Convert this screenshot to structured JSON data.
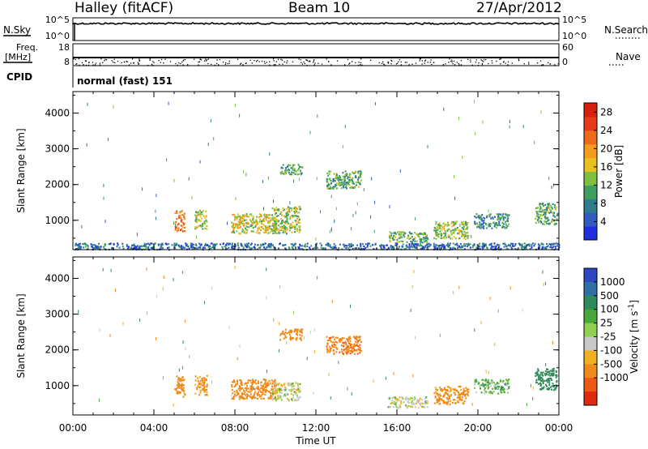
{
  "header": {
    "station": "Halley (fitACF)",
    "beam": "Beam 10",
    "date": "27/Apr/2012"
  },
  "panels": {
    "noise": {
      "left_label": "N.Sky",
      "right_label": "N.Search",
      "left_ticks": [
        "10^5",
        "10^0"
      ],
      "right_ticks": [
        "10^5",
        "10^0"
      ]
    },
    "freq": {
      "label_top": "Freq.",
      "label_bottom": "[MHz]",
      "right_label": "Nave",
      "left_ticks": [
        "18",
        "8"
      ],
      "right_ticks": [
        "60",
        "0"
      ]
    },
    "cpid": {
      "label": "CPID",
      "text": "normal (fast) 151"
    }
  },
  "chart_data": [
    {
      "type": "heatmap",
      "title": "",
      "xlabel": "",
      "ylabel": "Slant Range [km]",
      "xlim": [
        0,
        24
      ],
      "ylim": [
        180,
        4600
      ],
      "yticks": [
        1000,
        2000,
        3000,
        4000
      ],
      "colorbar": {
        "label": "Power [dB]",
        "ticks": [
          4,
          8,
          12,
          16,
          20,
          24,
          28
        ],
        "range": [
          0,
          30
        ],
        "colors": [
          "#1f2ee0",
          "#2f5cc0",
          "#2f7d8c",
          "#3f9f5f",
          "#7fbf3f",
          "#e8c020",
          "#f29b1f",
          "#ee6a1b",
          "#e83a18",
          "#d8200f"
        ]
      },
      "patches": [
        {
          "t": [
            5.0,
            5.5
          ],
          "r": [
            700,
            1300
          ],
          "level": 22
        },
        {
          "t": [
            6.0,
            6.6
          ],
          "r": [
            750,
            1300
          ],
          "level": 14
        },
        {
          "t": [
            7.8,
            10.0
          ],
          "r": [
            650,
            1200
          ],
          "level": 16
        },
        {
          "t": [
            9.8,
            11.2
          ],
          "r": [
            650,
            1400
          ],
          "level": 14
        },
        {
          "t": [
            10.2,
            11.3
          ],
          "r": [
            2300,
            2600
          ],
          "level": 10
        },
        {
          "t": [
            12.5,
            14.2
          ],
          "r": [
            1900,
            2400
          ],
          "level": 11
        },
        {
          "t": [
            15.5,
            17.5
          ],
          "r": [
            400,
            700
          ],
          "level": 12
        },
        {
          "t": [
            17.8,
            19.5
          ],
          "r": [
            500,
            1000
          ],
          "level": 14
        },
        {
          "t": [
            19.8,
            21.5
          ],
          "r": [
            800,
            1200
          ],
          "level": 9
        },
        {
          "t": [
            22.8,
            23.9
          ],
          "r": [
            900,
            1500
          ],
          "level": 11
        },
        {
          "t": [
            0.0,
            24.0
          ],
          "r": [
            200,
            380
          ],
          "level": 6
        }
      ]
    },
    {
      "type": "heatmap",
      "title": "",
      "xlabel": "Time UT",
      "ylabel": "Slant Range [km]",
      "xlim": [
        0,
        24
      ],
      "ylim": [
        180,
        4600
      ],
      "xticks": [
        "00:00",
        "04:00",
        "08:00",
        "12:00",
        "16:00",
        "20:00",
        "00:00"
      ],
      "yticks": [
        1000,
        2000,
        3000,
        4000
      ],
      "colorbar": {
        "label": "Velocity [m s-1]",
        "ticks": [
          1000,
          500,
          100,
          25,
          -25,
          -100,
          -500,
          -1000
        ],
        "colors": [
          "#2e48c4",
          "#2f6fa8",
          "#2e8a5a",
          "#49a83a",
          "#8fd14f",
          "#c8c8c8",
          "#f0b020",
          "#f08a1a",
          "#ee5a14",
          "#e02a10"
        ]
      },
      "patches": [
        {
          "t": [
            5.0,
            5.5
          ],
          "r": [
            700,
            1300
          ],
          "level": -200
        },
        {
          "t": [
            6.0,
            6.6
          ],
          "r": [
            750,
            1300
          ],
          "level": -150
        },
        {
          "t": [
            7.8,
            10.0
          ],
          "r": [
            650,
            1200
          ],
          "level": -200
        },
        {
          "t": [
            9.8,
            11.2
          ],
          "r": [
            600,
            1100
          ],
          "level": 0
        },
        {
          "t": [
            10.2,
            11.3
          ],
          "r": [
            2300,
            2600
          ],
          "level": -300
        },
        {
          "t": [
            12.5,
            14.2
          ],
          "r": [
            1900,
            2400
          ],
          "level": -400
        },
        {
          "t": [
            15.5,
            17.5
          ],
          "r": [
            400,
            700
          ],
          "level": 0
        },
        {
          "t": [
            17.8,
            19.5
          ],
          "r": [
            500,
            1000
          ],
          "level": -150
        },
        {
          "t": [
            19.8,
            21.5
          ],
          "r": [
            800,
            1200
          ],
          "level": 60
        },
        {
          "t": [
            22.8,
            23.9
          ],
          "r": [
            900,
            1500
          ],
          "level": 300
        }
      ]
    }
  ]
}
